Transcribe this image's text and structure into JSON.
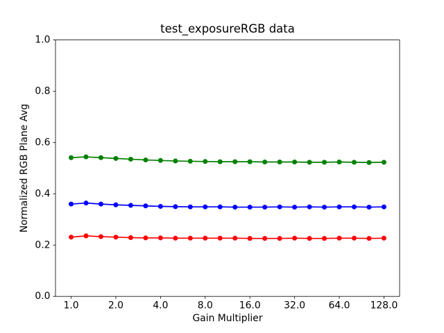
{
  "figure": {
    "background": "#ffffff",
    "spine_color": "#000000"
  },
  "chart_data": {
    "type": "line",
    "title": "test_exposureRGB data",
    "xlabel": "Gain Multiplier",
    "ylabel": "Normalized RGB Plane Avg",
    "x_scale": "log2",
    "xlim": [
      1.0,
      128.0
    ],
    "ylim": [
      0.0,
      1.0
    ],
    "grid": false,
    "legend": "none",
    "x_ticks": {
      "values": [
        1,
        2,
        4,
        8,
        16,
        32,
        64,
        128
      ],
      "labels": [
        "1.0",
        "2.0",
        "4.0",
        "8.0",
        "16.0",
        "32.0",
        "64.0",
        "128.0"
      ]
    },
    "y_ticks": {
      "values": [
        0.0,
        0.2,
        0.4,
        0.6,
        0.8,
        1.0
      ],
      "labels": [
        "0.0",
        "0.2",
        "0.4",
        "0.6",
        "0.8",
        "1.0"
      ]
    },
    "x": [
      1.0,
      1.26,
      1.587,
      2.0,
      2.52,
      3.175,
      4.0,
      5.04,
      6.35,
      8.0,
      10.08,
      12.7,
      16.0,
      20.16,
      25.4,
      32.0,
      40.32,
      50.8,
      64.0,
      80.63,
      101.59,
      128.0
    ],
    "series": [
      {
        "name": "green",
        "color": "#008000",
        "marker": "circle",
        "values": [
          0.541,
          0.544,
          0.541,
          0.538,
          0.535,
          0.532,
          0.53,
          0.528,
          0.527,
          0.526,
          0.525,
          0.525,
          0.525,
          0.524,
          0.524,
          0.524,
          0.523,
          0.523,
          0.524,
          0.523,
          0.522,
          0.523
        ]
      },
      {
        "name": "blue",
        "color": "#0000ff",
        "marker": "circle",
        "values": [
          0.36,
          0.364,
          0.36,
          0.357,
          0.355,
          0.353,
          0.351,
          0.35,
          0.349,
          0.349,
          0.349,
          0.348,
          0.348,
          0.348,
          0.349,
          0.348,
          0.349,
          0.348,
          0.349,
          0.349,
          0.348,
          0.349
        ]
      },
      {
        "name": "red",
        "color": "#ff0000",
        "marker": "circle",
        "values": [
          0.231,
          0.236,
          0.233,
          0.231,
          0.229,
          0.228,
          0.228,
          0.227,
          0.227,
          0.227,
          0.227,
          0.227,
          0.226,
          0.226,
          0.226,
          0.227,
          0.226,
          0.226,
          0.227,
          0.227,
          0.226,
          0.227
        ]
      }
    ]
  }
}
